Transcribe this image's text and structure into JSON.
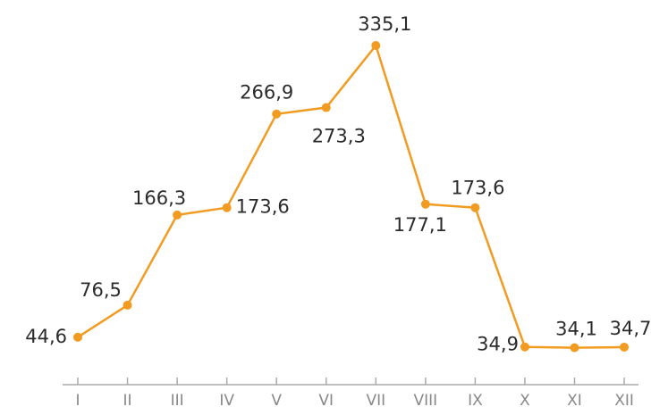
{
  "chart_data": {
    "type": "line",
    "categories": [
      "I",
      "II",
      "III",
      "IV",
      "V",
      "VI",
      "VII",
      "VIII",
      "IX",
      "X",
      "XI",
      "XII"
    ],
    "values": [
      44.6,
      76.5,
      166.3,
      173.6,
      266.9,
      273.3,
      335.1,
      177.1,
      173.6,
      34.9,
      34.1,
      34.7
    ],
    "value_labels": [
      "44,6",
      "76,5",
      "166,3",
      "173,6",
      "266,9",
      "273,3",
      "335,1",
      "177,1",
      "173,6",
      "34,9",
      "34,1",
      "34,7"
    ],
    "color": "#f29b21"
  }
}
